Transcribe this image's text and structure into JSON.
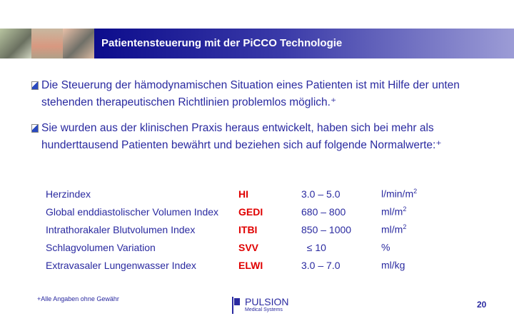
{
  "header": {
    "title": "Patientensteuerung mit der PiCCO Technologie"
  },
  "bullets": [
    {
      "icon": "note-bullet-icon",
      "lines": [
        "Die Steuerung der hämodynamischen Situation eines Patienten ist mit Hilfe der unten",
        "stehenden therapeutischen Richtlinien problemlos möglich.⁺"
      ]
    },
    {
      "icon": "note-bullet-icon",
      "lines": [
        "Sie wurden aus der klinischen Praxis heraus entwickelt, haben sich bei mehr als",
        "hunderttausend Patienten bewährt und beziehen sich auf folgende Normalwerte:⁺"
      ]
    }
  ],
  "table": [
    {
      "name": "Herzindex",
      "abbr": "HI",
      "range": "3.0 – 5.0",
      "unit": "l/min/m",
      "sup": "2"
    },
    {
      "name": "Global enddiastolischer Volumen Index",
      "abbr": "GEDI",
      "range": "680 – 800",
      "unit": "ml/m",
      "sup": "2"
    },
    {
      "name": "Intrathorakaler Blutvolumen Index",
      "abbr": "ITBI",
      "range": "850 – 1000",
      "unit": "ml/m",
      "sup": "2"
    },
    {
      "name": "Schlagvolumen Variation",
      "abbr": "SVV",
      "range": "  ≤ 10",
      "unit": "%",
      "sup": ""
    },
    {
      "name": "Extravasaler Lungenwasser Index",
      "abbr": "ELWI",
      "range": "3.0 – 7.0",
      "unit": "ml/kg",
      "sup": ""
    }
  ],
  "footer": {
    "note": "+Alle Angaben ohne Gewähr",
    "logo_name": "PULSION",
    "logo_sub": "Medical Systems",
    "page": "20"
  },
  "colors": {
    "text": "#2a2aa0",
    "accent": "#e00000",
    "header_start": "#0c0c8c",
    "header_end": "#9c9cd6"
  }
}
